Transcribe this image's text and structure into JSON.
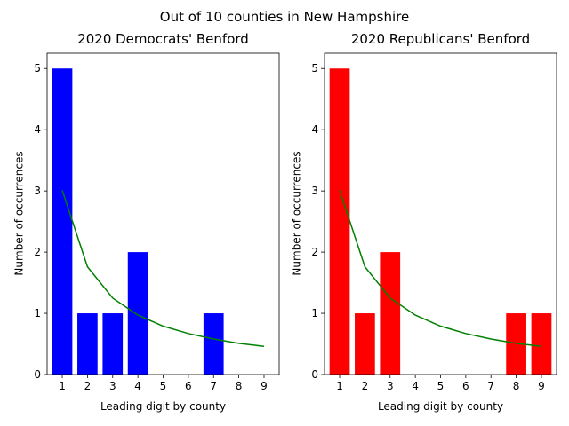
{
  "suptitle": "Out of 10 counties in New Hampshire",
  "chart_data": [
    {
      "type": "bar",
      "title": "2020 Democrats' Benford",
      "xlabel": "Leading digit by county",
      "ylabel": "Number of occurrences",
      "categories": [
        1,
        2,
        3,
        4,
        5,
        6,
        7,
        8,
        9
      ],
      "values": [
        5,
        1,
        1,
        2,
        0,
        0,
        1,
        0,
        0
      ],
      "bar_color": "#0000ff",
      "ylim": [
        0,
        5.25
      ],
      "yticks": [
        0,
        1,
        2,
        3,
        4,
        5
      ],
      "expected_line": {
        "type": "line",
        "color": "#008000",
        "x": [
          1,
          2,
          3,
          4,
          5,
          6,
          7,
          8,
          9
        ],
        "y": [
          3.01,
          1.76,
          1.25,
          0.97,
          0.79,
          0.67,
          0.58,
          0.51,
          0.46
        ]
      }
    },
    {
      "type": "bar",
      "title": "2020 Republicans' Benford",
      "xlabel": "Leading digit by county",
      "ylabel": "Number of occurrences",
      "categories": [
        1,
        2,
        3,
        4,
        5,
        6,
        7,
        8,
        9
      ],
      "values": [
        5,
        1,
        2,
        0,
        0,
        0,
        0,
        1,
        1
      ],
      "bar_color": "#ff0000",
      "ylim": [
        0,
        5.25
      ],
      "yticks": [
        0,
        1,
        2,
        3,
        4,
        5
      ],
      "expected_line": {
        "type": "line",
        "color": "#008000",
        "x": [
          1,
          2,
          3,
          4,
          5,
          6,
          7,
          8,
          9
        ],
        "y": [
          3.01,
          1.76,
          1.25,
          0.97,
          0.79,
          0.67,
          0.58,
          0.51,
          0.46
        ]
      }
    }
  ]
}
